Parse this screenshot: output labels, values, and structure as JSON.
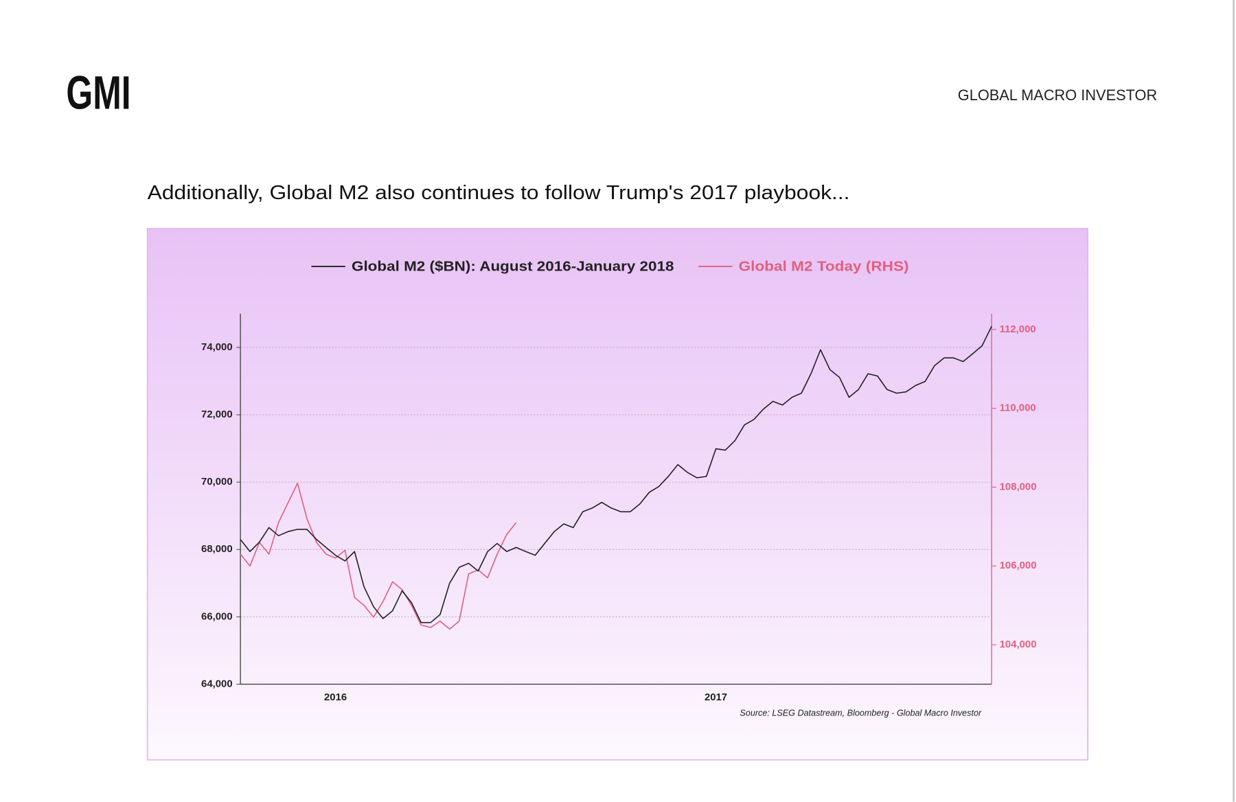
{
  "header": {
    "logo": "GMI",
    "brand": "GLOBAL MACRO INVESTOR"
  },
  "heading": "Additionally, Global M2 also continues to follow Trump's 2017 playbook...",
  "chart_data": {
    "type": "line",
    "categories": [
      null,
      null,
      null,
      null,
      null,
      null,
      null,
      null,
      null,
      null,
      "2016",
      null,
      null,
      null,
      null,
      null,
      null,
      null,
      null,
      null,
      null,
      null,
      null,
      null,
      null,
      null,
      null,
      null,
      null,
      null,
      null,
      null,
      null,
      null,
      null,
      null,
      null,
      null,
      null,
      null,
      null,
      null,
      null,
      null,
      null,
      null,
      null,
      null,
      null,
      null,
      "2017",
      null,
      null,
      null,
      null,
      null,
      null,
      null,
      null,
      null,
      null,
      null,
      null,
      null,
      null,
      null,
      null,
      null,
      null,
      null,
      null,
      null,
      null,
      null,
      null,
      null,
      null,
      null,
      null,
      null
    ],
    "series": [
      {
        "name": "Global M2 ($BN): August 2016-January 2018",
        "color": "#222222",
        "axis": "y",
        "values": [
          68300,
          67940,
          68220,
          68650,
          68410,
          68530,
          68600,
          68600,
          68300,
          68060,
          67830,
          67660,
          67940,
          66890,
          66300,
          65950,
          66180,
          66770,
          66420,
          65830,
          65830,
          66070,
          67000,
          67470,
          67590,
          67360,
          67940,
          68180,
          67940,
          68060,
          67940,
          67830,
          68180,
          68530,
          68760,
          68650,
          69120,
          69230,
          69400,
          69230,
          69120,
          69120,
          69350,
          69700,
          69870,
          70170,
          70520,
          70290,
          70130,
          70170,
          70990,
          70950,
          71230,
          71700,
          71860,
          72170,
          72400,
          72290,
          72520,
          72640,
          73220,
          73930,
          73340,
          73110,
          72520,
          72750,
          73220,
          73150,
          72750,
          72640,
          72680,
          72870,
          72990,
          73460,
          73690,
          73690,
          73580,
          73810,
          74050,
          74630
        ]
      },
      {
        "name": "Global M2 Today (RHS)",
        "color": "#e0607e",
        "axis": "y2",
        "values": [
          106300,
          106000,
          106600,
          106300,
          107100,
          107600,
          108100,
          107200,
          106600,
          106300,
          106200,
          106400,
          105200,
          105000,
          104700,
          105100,
          105600,
          105400,
          105000,
          104500,
          104440,
          104600,
          104400,
          104600,
          105800,
          105900,
          105700,
          106300,
          106800,
          107100,
          null,
          null,
          null,
          null,
          null,
          null,
          null,
          null,
          null,
          null,
          null,
          null,
          null,
          null,
          null,
          null,
          null,
          null,
          null,
          null,
          null,
          null,
          null,
          null,
          null,
          null,
          null,
          null,
          null,
          null,
          null,
          null,
          null,
          null,
          null,
          null,
          null,
          null,
          null,
          null,
          null,
          null,
          null,
          null,
          null,
          null,
          null,
          null,
          null,
          null
        ]
      }
    ],
    "ylim": [
      64000,
      75000
    ],
    "yticks": [
      {
        "value": 64000,
        "label": "64,000"
      },
      {
        "value": 66000,
        "label": "66,000"
      },
      {
        "value": 68000,
        "label": "68,000"
      },
      {
        "value": 70000,
        "label": "70,000"
      },
      {
        "value": 72000,
        "label": "72,000"
      },
      {
        "value": 74000,
        "label": "74,000"
      }
    ],
    "y2lim": [
      103000,
      112400
    ],
    "y2ticks": [
      {
        "value": 104000,
        "label": "104,000"
      },
      {
        "value": 106000,
        "label": "106,000"
      },
      {
        "value": 108000,
        "label": "108,000"
      },
      {
        "value": 110000,
        "label": "110,000"
      },
      {
        "value": 112000,
        "label": "112,000"
      }
    ],
    "grid": true,
    "source": "Source: LSEG Datastream, Bloomberg - Global Macro Investor"
  }
}
